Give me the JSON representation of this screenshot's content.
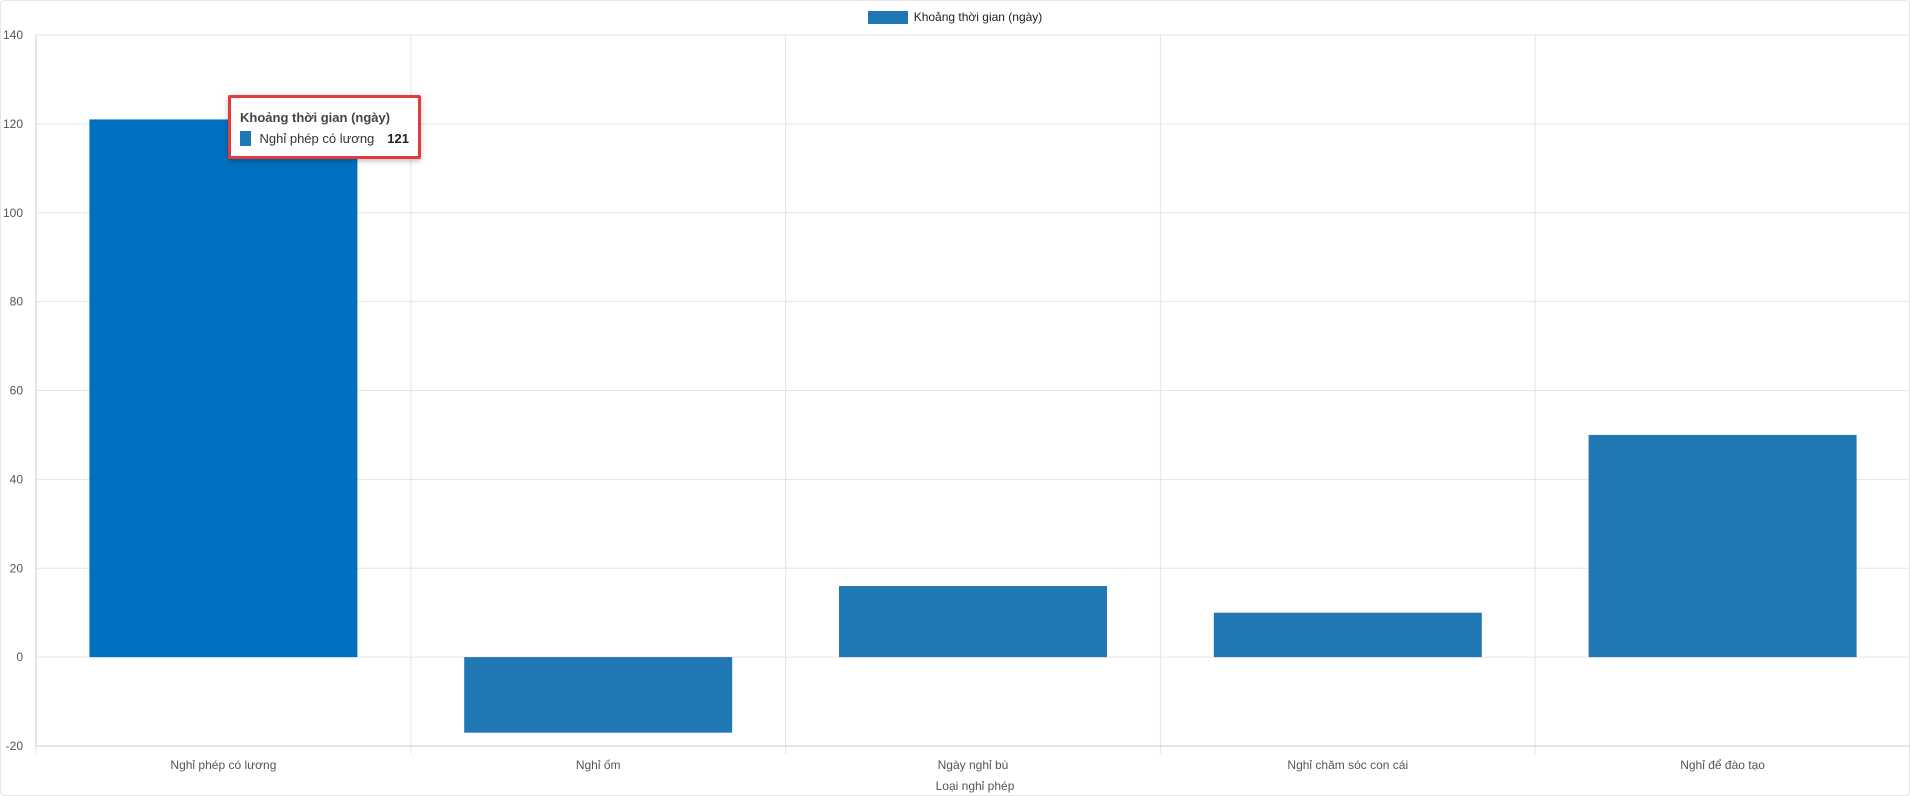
{
  "chart_data": {
    "type": "bar",
    "title": "",
    "xlabel": "Loại nghỉ phép",
    "ylabel": "",
    "ylim": [
      -20,
      140
    ],
    "ytick_step": 20,
    "grid": true,
    "legend_position": "top-center",
    "categories": [
      "Nghỉ phép có lương",
      "Nghỉ ốm",
      "Ngày nghỉ bù",
      "Nghỉ chăm sóc con cái",
      "Nghỉ để đào tạo"
    ],
    "series": [
      {
        "name": "Khoảng thời gian (ngày)",
        "values": [
          121,
          -17,
          16,
          10,
          50
        ],
        "color": "#1f77b4",
        "highlight_color": "#0070c0"
      }
    ],
    "highlighted_index": 0
  },
  "tooltip": {
    "title": "Khoảng thời gian (ngày)",
    "label": "Nghỉ phép có lương",
    "value": "121",
    "color": "#1f77b4",
    "border_color": "#e03c3c"
  },
  "legend": {
    "label": "Khoảng thời gian (ngày)",
    "color": "#1f77b4"
  },
  "colors": {
    "grid": "#e5e5e5",
    "axis": "#cccccc",
    "tick_text": "#555555"
  }
}
